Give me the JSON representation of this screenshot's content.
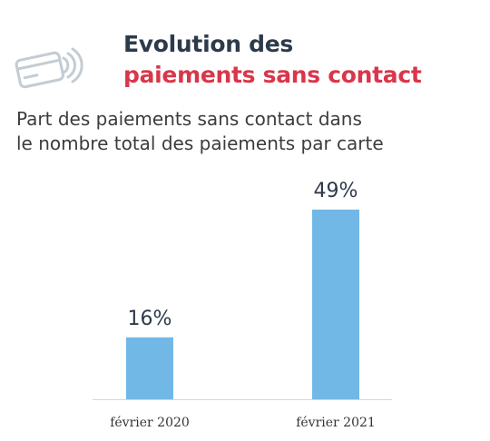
{
  "header": {
    "title_line1": "Evolution des",
    "title_line2": "paiements sans contact",
    "icon": "contactless-card-icon"
  },
  "subtitle_line1": "Part des paiements sans contact dans",
  "subtitle_line2": "le nombre total des paiements par carte",
  "colors": {
    "title": "#2c3a4b",
    "accent": "#d9364a",
    "bar": "#72b8e6",
    "axis": "#d6d6d6",
    "icon": "#c4ccd3"
  },
  "chart_data": {
    "type": "bar",
    "categories": [
      "février 2020",
      "février 2021"
    ],
    "values": [
      16,
      49
    ],
    "value_labels": [
      "16%",
      "49%"
    ],
    "ylim": [
      0,
      49
    ],
    "grid": false
  }
}
